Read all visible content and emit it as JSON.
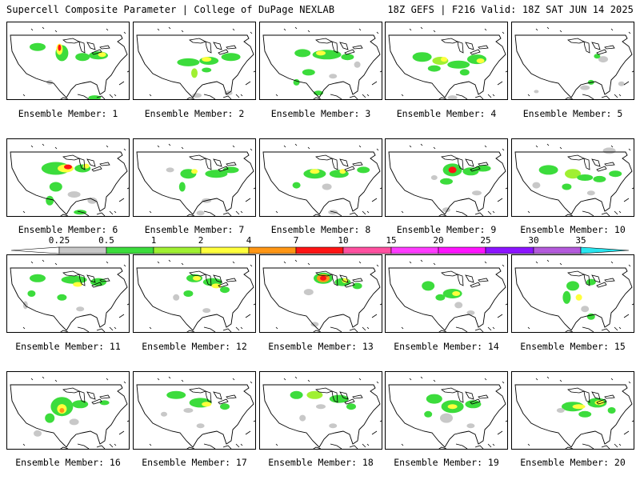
{
  "header": {
    "title": "Supercell Composite Parameter | College of DuPage NEXLAB",
    "run_info": "18Z GEFS | F216 Valid: 18Z SAT JUN 14 2025"
  },
  "caption_prefix": "Ensemble Member:",
  "members": [
    {
      "id": 1,
      "label": "Ensemble Member: 1"
    },
    {
      "id": 2,
      "label": "Ensemble Member: 2"
    },
    {
      "id": 3,
      "label": "Ensemble Member: 3"
    },
    {
      "id": 4,
      "label": "Ensemble Member: 4"
    },
    {
      "id": 5,
      "label": "Ensemble Member: 5"
    },
    {
      "id": 6,
      "label": "Ensemble Member: 6"
    },
    {
      "id": 7,
      "label": "Ensemble Member: 7"
    },
    {
      "id": 8,
      "label": "Ensemble Member: 8"
    },
    {
      "id": 9,
      "label": "Ensemble Member: 9"
    },
    {
      "id": 10,
      "label": "Ensemble Member: 10"
    },
    {
      "id": 11,
      "label": "Ensemble Member: 11"
    },
    {
      "id": 12,
      "label": "Ensemble Member: 12"
    },
    {
      "id": 13,
      "label": "Ensemble Member: 13"
    },
    {
      "id": 14,
      "label": "Ensemble Member: 14"
    },
    {
      "id": 15,
      "label": "Ensemble Member: 15"
    },
    {
      "id": 16,
      "label": "Ensemble Member: 16"
    },
    {
      "id": 17,
      "label": "Ensemble Member: 17"
    },
    {
      "id": 18,
      "label": "Ensemble Member: 18"
    },
    {
      "id": 19,
      "label": "Ensemble Member: 19"
    },
    {
      "id": 20,
      "label": "Ensemble Member: 20"
    }
  ],
  "colorbar": {
    "levels": [
      "0.25",
      "0.5",
      "1",
      "2",
      "4",
      "7",
      "10",
      "15",
      "20",
      "25",
      "30",
      "35"
    ],
    "colors": [
      "#ffffff",
      "#c8c8c8",
      "#3cdc3c",
      "#a0f032",
      "#ffff3c",
      "#ff9614",
      "#ff1414",
      "#ff50a0",
      "#ff3cff",
      "#ff14ff",
      "#8c14ff",
      "#b45adc",
      "#28e6f0"
    ]
  }
}
